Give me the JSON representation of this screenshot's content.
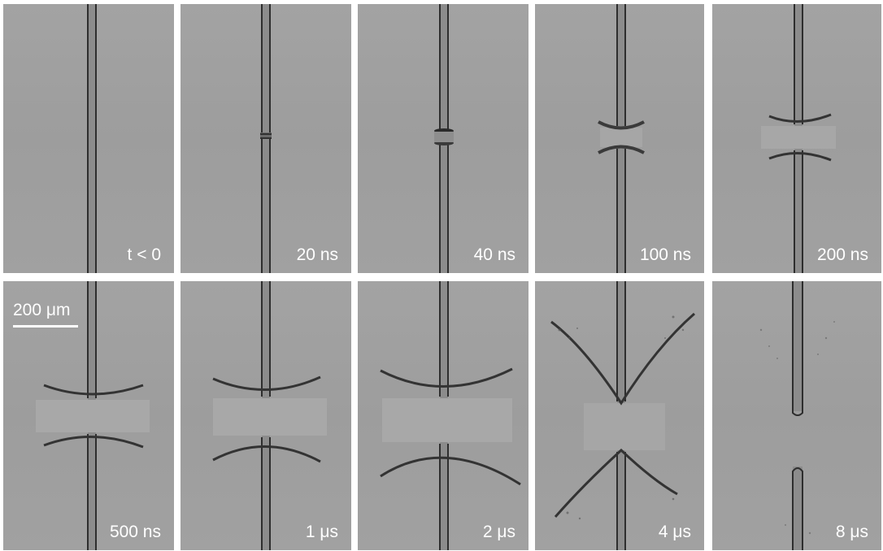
{
  "figure": {
    "scale_bar": {
      "label": "200 μm"
    },
    "panels": [
      {
        "label": "t < 0",
        "stage": "intact-fiber"
      },
      {
        "label": "20 ns",
        "stage": "initial-break"
      },
      {
        "label": "40 ns",
        "stage": "small-gap"
      },
      {
        "label": "100 ns",
        "stage": "gap-widening"
      },
      {
        "label": "200 ns",
        "stage": "cusps-forming"
      },
      {
        "label": "500 ns",
        "stage": "cusps-extended"
      },
      {
        "label": "1 μs",
        "stage": "cusps-extended"
      },
      {
        "label": "2 μs",
        "stage": "cusps-spreading"
      },
      {
        "label": "4 μs",
        "stage": "v-shaped-fronts"
      },
      {
        "label": "8 μs",
        "stage": "fragmented-ends"
      }
    ]
  }
}
